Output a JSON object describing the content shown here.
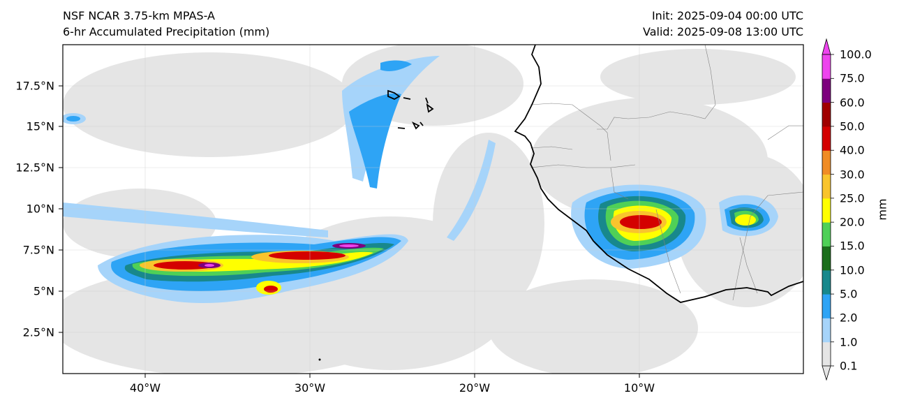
{
  "header": {
    "model": "NSF NCAR 3.75-km MPAS-A",
    "field": "6-hr Accumulated Precipitation (mm)",
    "init": "Init: 2025-09-04 00:00 UTC",
    "valid": "Valid: 2025-09-08 13:00 UTC"
  },
  "map": {
    "lat_ticks": [
      "17.5°N",
      "15°N",
      "12.5°N",
      "10°N",
      "7.5°N",
      "5°N",
      "2.5°N"
    ],
    "lon_ticks": [
      "40°W",
      "30°W",
      "20°W",
      "10°W"
    ],
    "coastline_color": "#000000",
    "border_color": "#808080",
    "gridlines": true
  },
  "colorbar": {
    "unit": "mm",
    "levels": [
      "0.1",
      "1.0",
      "2.0",
      "5.0",
      "10.0",
      "15.0",
      "20.0",
      "25.0",
      "30.0",
      "40.0",
      "50.0",
      "60.0",
      "75.0",
      "100.0"
    ],
    "colors": [
      "#e5e5e5",
      "#a6d4fa",
      "#2ea4f5",
      "#18888c",
      "#1b6e1c",
      "#4fd057",
      "#ffff00",
      "#f9c42d",
      "#f08c25",
      "#d40000",
      "#a00000",
      "#7d007d",
      "#ee44ee"
    ],
    "extend": "both"
  }
}
